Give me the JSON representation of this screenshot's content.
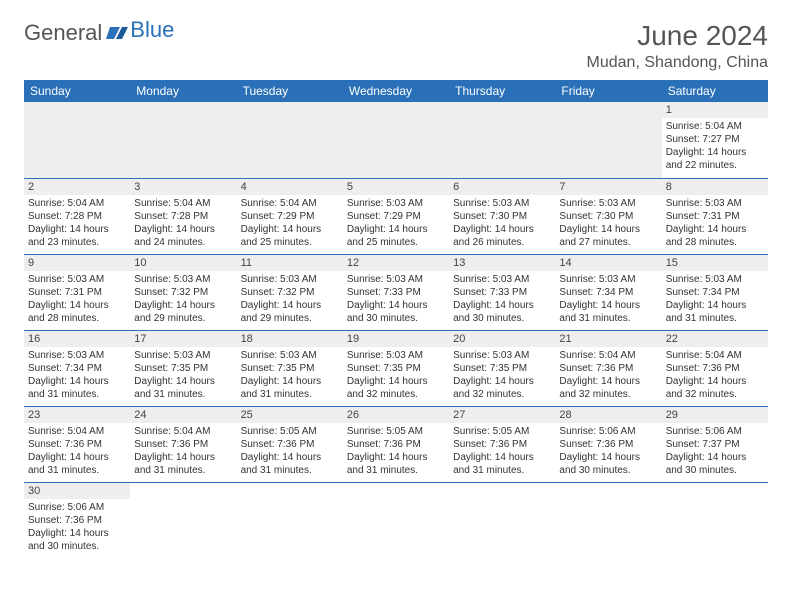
{
  "logo": {
    "textGeneral": "General",
    "textBlue": "Blue"
  },
  "header": {
    "monthTitle": "June 2024",
    "location": "Mudan, Shandong, China"
  },
  "colors": {
    "headerBg": "#2970b8",
    "grayBar": "#eeeeee",
    "text": "#333333"
  },
  "dayNames": [
    "Sunday",
    "Monday",
    "Tuesday",
    "Wednesday",
    "Thursday",
    "Friday",
    "Saturday"
  ],
  "firstDayOffset": 6,
  "daysInMonth": 30,
  "days": {
    "1": {
      "sunrise": "5:04 AM",
      "sunset": "7:27 PM",
      "daylight": "14 hours and 22 minutes."
    },
    "2": {
      "sunrise": "5:04 AM",
      "sunset": "7:28 PM",
      "daylight": "14 hours and 23 minutes."
    },
    "3": {
      "sunrise": "5:04 AM",
      "sunset": "7:28 PM",
      "daylight": "14 hours and 24 minutes."
    },
    "4": {
      "sunrise": "5:04 AM",
      "sunset": "7:29 PM",
      "daylight": "14 hours and 25 minutes."
    },
    "5": {
      "sunrise": "5:03 AM",
      "sunset": "7:29 PM",
      "daylight": "14 hours and 25 minutes."
    },
    "6": {
      "sunrise": "5:03 AM",
      "sunset": "7:30 PM",
      "daylight": "14 hours and 26 minutes."
    },
    "7": {
      "sunrise": "5:03 AM",
      "sunset": "7:30 PM",
      "daylight": "14 hours and 27 minutes."
    },
    "8": {
      "sunrise": "5:03 AM",
      "sunset": "7:31 PM",
      "daylight": "14 hours and 28 minutes."
    },
    "9": {
      "sunrise": "5:03 AM",
      "sunset": "7:31 PM",
      "daylight": "14 hours and 28 minutes."
    },
    "10": {
      "sunrise": "5:03 AM",
      "sunset": "7:32 PM",
      "daylight": "14 hours and 29 minutes."
    },
    "11": {
      "sunrise": "5:03 AM",
      "sunset": "7:32 PM",
      "daylight": "14 hours and 29 minutes."
    },
    "12": {
      "sunrise": "5:03 AM",
      "sunset": "7:33 PM",
      "daylight": "14 hours and 30 minutes."
    },
    "13": {
      "sunrise": "5:03 AM",
      "sunset": "7:33 PM",
      "daylight": "14 hours and 30 minutes."
    },
    "14": {
      "sunrise": "5:03 AM",
      "sunset": "7:34 PM",
      "daylight": "14 hours and 31 minutes."
    },
    "15": {
      "sunrise": "5:03 AM",
      "sunset": "7:34 PM",
      "daylight": "14 hours and 31 minutes."
    },
    "16": {
      "sunrise": "5:03 AM",
      "sunset": "7:34 PM",
      "daylight": "14 hours and 31 minutes."
    },
    "17": {
      "sunrise": "5:03 AM",
      "sunset": "7:35 PM",
      "daylight": "14 hours and 31 minutes."
    },
    "18": {
      "sunrise": "5:03 AM",
      "sunset": "7:35 PM",
      "daylight": "14 hours and 31 minutes."
    },
    "19": {
      "sunrise": "5:03 AM",
      "sunset": "7:35 PM",
      "daylight": "14 hours and 32 minutes."
    },
    "20": {
      "sunrise": "5:03 AM",
      "sunset": "7:35 PM",
      "daylight": "14 hours and 32 minutes."
    },
    "21": {
      "sunrise": "5:04 AM",
      "sunset": "7:36 PM",
      "daylight": "14 hours and 32 minutes."
    },
    "22": {
      "sunrise": "5:04 AM",
      "sunset": "7:36 PM",
      "daylight": "14 hours and 32 minutes."
    },
    "23": {
      "sunrise": "5:04 AM",
      "sunset": "7:36 PM",
      "daylight": "14 hours and 31 minutes."
    },
    "24": {
      "sunrise": "5:04 AM",
      "sunset": "7:36 PM",
      "daylight": "14 hours and 31 minutes."
    },
    "25": {
      "sunrise": "5:05 AM",
      "sunset": "7:36 PM",
      "daylight": "14 hours and 31 minutes."
    },
    "26": {
      "sunrise": "5:05 AM",
      "sunset": "7:36 PM",
      "daylight": "14 hours and 31 minutes."
    },
    "27": {
      "sunrise": "5:05 AM",
      "sunset": "7:36 PM",
      "daylight": "14 hours and 31 minutes."
    },
    "28": {
      "sunrise": "5:06 AM",
      "sunset": "7:36 PM",
      "daylight": "14 hours and 30 minutes."
    },
    "29": {
      "sunrise": "5:06 AM",
      "sunset": "7:37 PM",
      "daylight": "14 hours and 30 minutes."
    },
    "30": {
      "sunrise": "5:06 AM",
      "sunset": "7:36 PM",
      "daylight": "14 hours and 30 minutes."
    }
  },
  "labels": {
    "sunrisePrefix": "Sunrise: ",
    "sunsetPrefix": "Sunset: ",
    "daylightPrefix": "Daylight: "
  }
}
